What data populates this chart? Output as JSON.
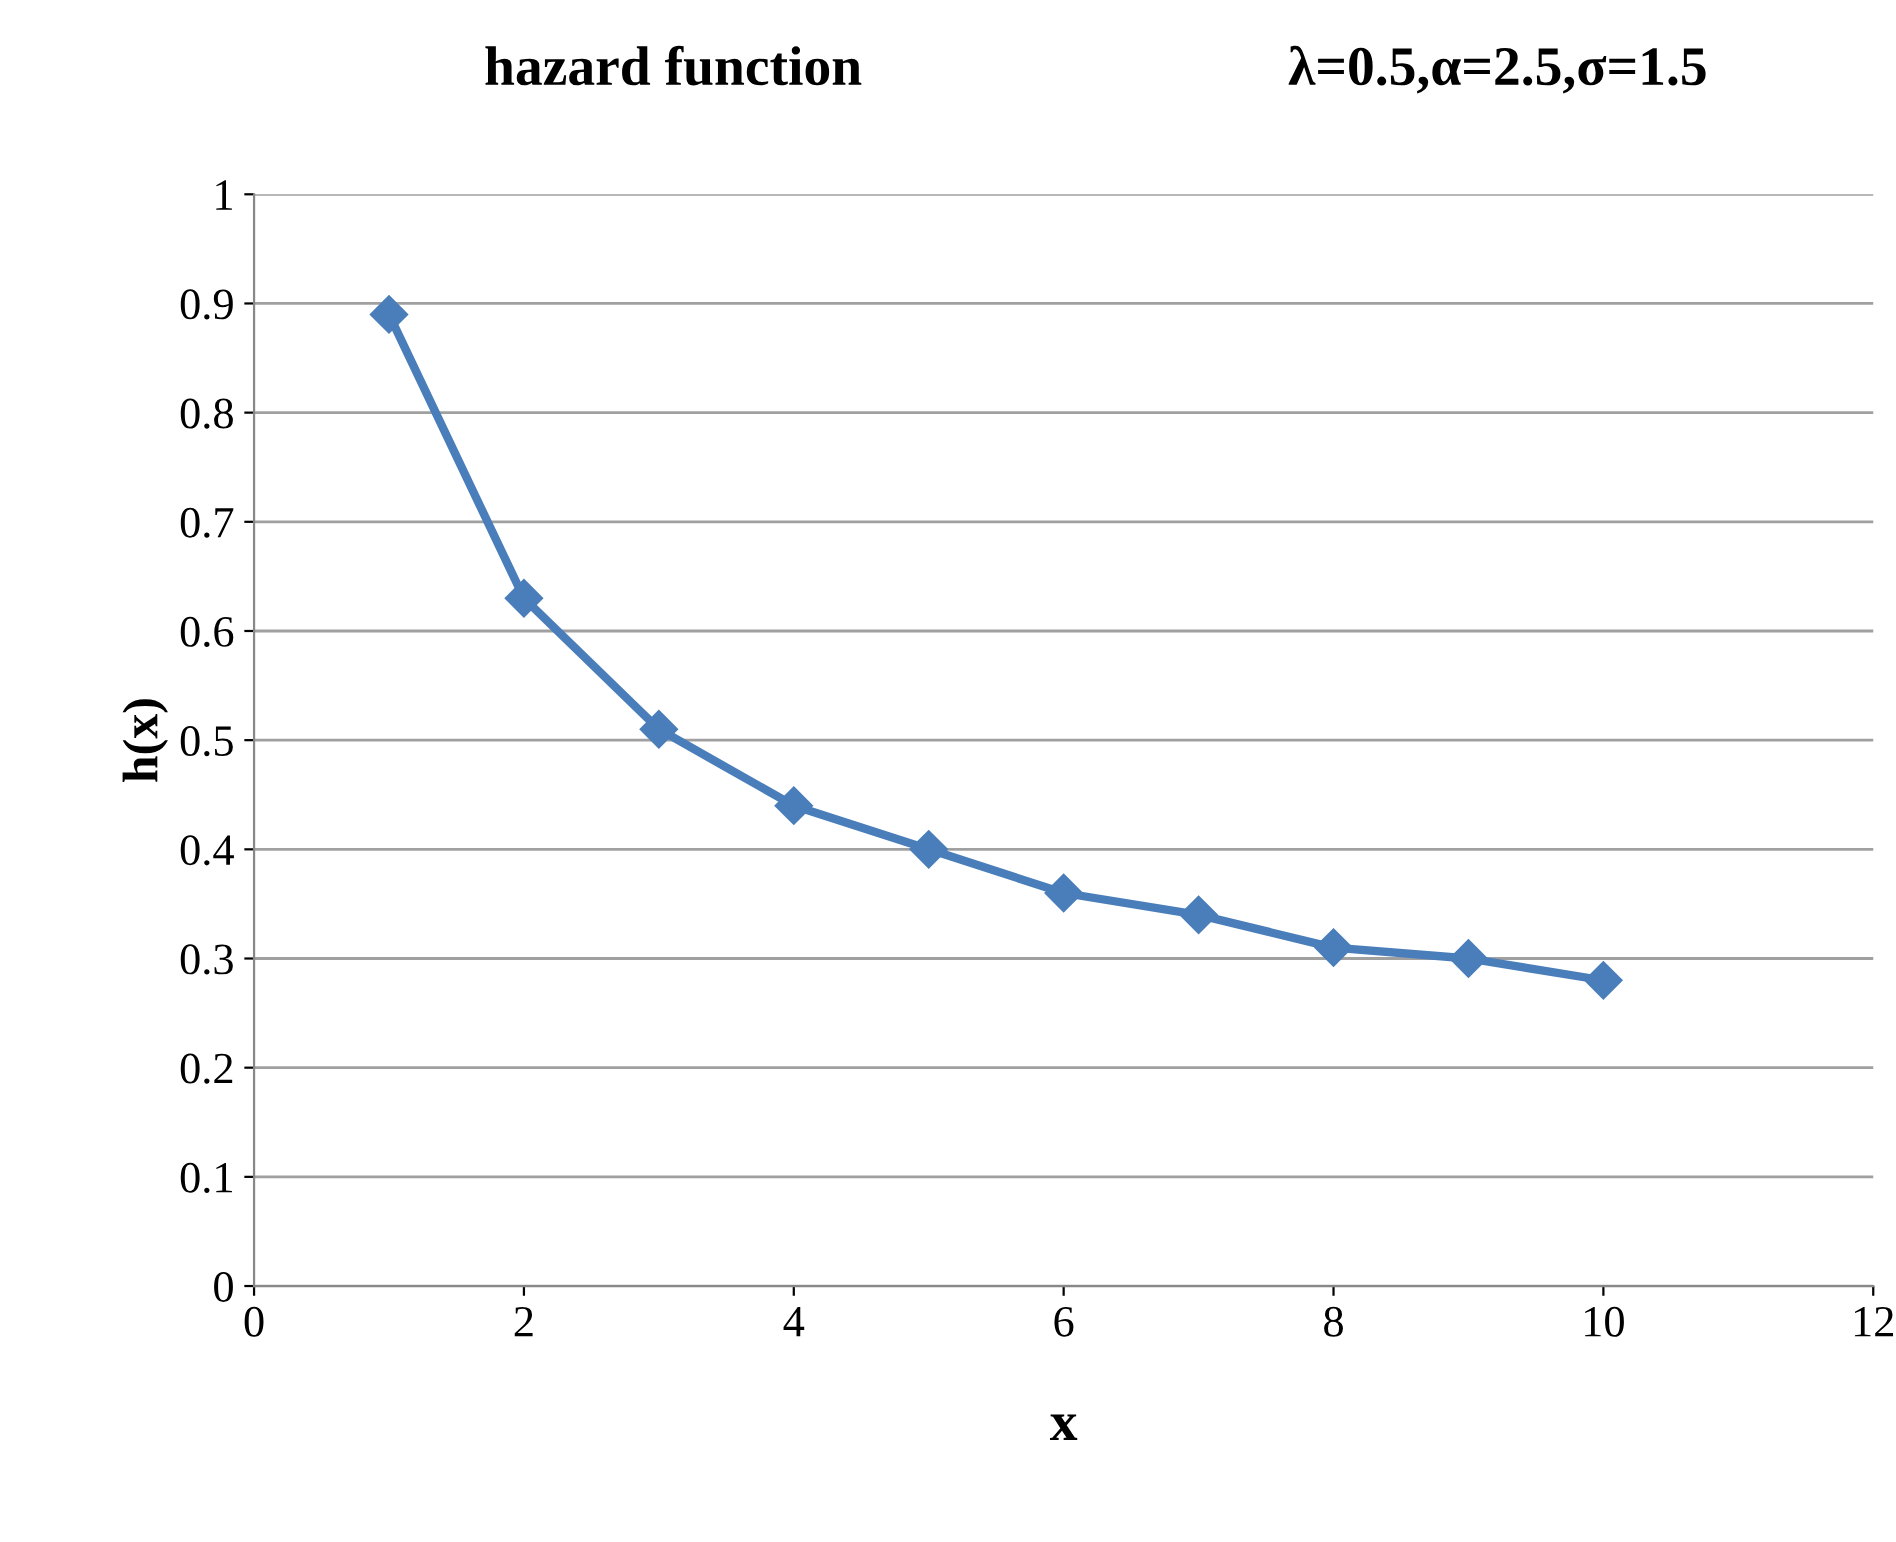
{
  "chart_data": {
    "type": "line",
    "title": "hazard function",
    "annotations": [
      "λ=0.5,α=2.5,σ=1.5"
    ],
    "xlabel": "x",
    "ylabel": "h(x)",
    "x": [
      1,
      2,
      3,
      4,
      5,
      6,
      7,
      8,
      9,
      10
    ],
    "series": [
      {
        "color": "#4a7ebb",
        "values": [
          0.89,
          0.63,
          0.51,
          0.44,
          0.4,
          0.36,
          0.34,
          0.31,
          0.3,
          0.28
        ]
      }
    ],
    "xlim": [
      0,
      12
    ],
    "xticks": [
      0,
      2,
      4,
      6,
      8,
      10,
      12
    ],
    "ylim": [
      0,
      1
    ],
    "yticks": [
      0,
      0.1,
      0.2,
      0.3,
      0.4,
      0.5,
      0.6,
      0.7,
      0.8,
      0.9,
      1
    ],
    "grid": "y",
    "marker": "diamond",
    "line_style": "solid",
    "legend": false
  }
}
